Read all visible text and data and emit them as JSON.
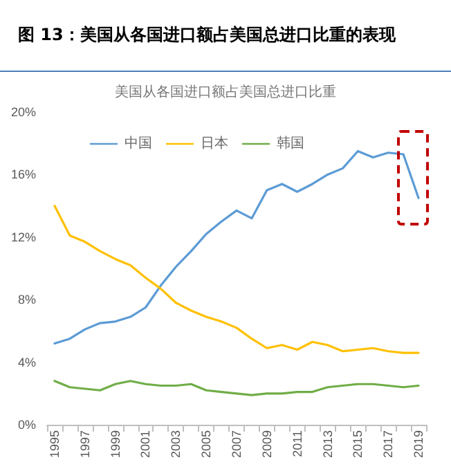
{
  "chart_data": {
    "type": "line",
    "title": "图 13：美国从各国进口额占美国总进口比重的表现",
    "subtitle": "美国从各国进口额占美国总进口比重",
    "categories": [
      "1995",
      null,
      "1997",
      null,
      "1999",
      null,
      "2001",
      null,
      "2003",
      null,
      "2005",
      null,
      "2007",
      null,
      "2009",
      null,
      "2011",
      null,
      "2013",
      null,
      "2015",
      null,
      "2017",
      null,
      "2019"
    ],
    "series": [
      {
        "name": "中国",
        "color": "#5b9bd5",
        "values": [
          5.2,
          5.5,
          6.1,
          6.5,
          6.6,
          6.9,
          7.5,
          8.9,
          10.1,
          11.1,
          12.2,
          13.0,
          13.7,
          13.2,
          15.0,
          15.4,
          14.9,
          15.4,
          16.0,
          16.4,
          17.5,
          17.1,
          17.4,
          17.3,
          14.5
        ]
      },
      {
        "name": "日本",
        "color": "#ffc000",
        "values": [
          14.0,
          12.1,
          11.7,
          11.1,
          10.6,
          10.2,
          9.4,
          8.7,
          7.8,
          7.3,
          6.9,
          6.6,
          6.2,
          5.5,
          4.9,
          5.1,
          4.8,
          5.3,
          5.1,
          4.7,
          4.8,
          4.9,
          4.7,
          4.6,
          4.6
        ]
      },
      {
        "name": "韩国",
        "color": "#70ad47",
        "values": [
          2.8,
          2.4,
          2.3,
          2.2,
          2.6,
          2.8,
          2.6,
          2.5,
          2.5,
          2.6,
          2.2,
          2.1,
          2.0,
          1.9,
          2.0,
          2.0,
          2.1,
          2.1,
          2.4,
          2.5,
          2.6,
          2.6,
          2.5,
          2.4,
          2.5
        ]
      }
    ],
    "ylim": [
      0,
      20
    ],
    "yticks": [
      {
        "value": 0,
        "label": "0%"
      },
      {
        "value": 4,
        "label": "4%"
      },
      {
        "value": 8,
        "label": "8%"
      },
      {
        "value": 12,
        "label": "12%"
      },
      {
        "value": 16,
        "label": "16%"
      },
      {
        "value": 20,
        "label": "20%"
      }
    ],
    "grid": false,
    "legend": "top left",
    "marker": "none",
    "line_style": "solid"
  }
}
